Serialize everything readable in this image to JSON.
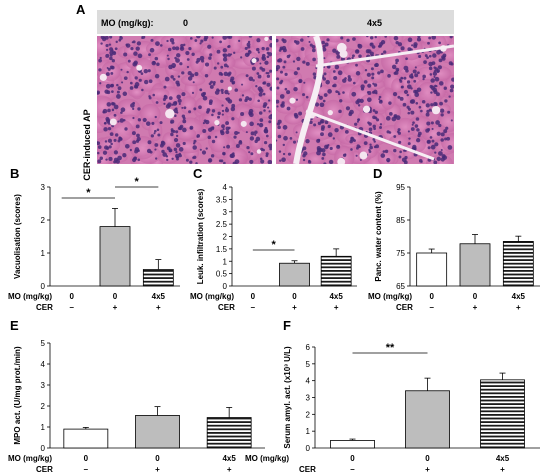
{
  "panel_a": {
    "label": "A",
    "header_label": "MO (mg/kg):",
    "header_groups": [
      "0",
      "4x5"
    ],
    "row_label": "CER-induced AP"
  },
  "row_labels": {
    "mo": "MO (mg/kg)",
    "cer": "CER",
    "groups": [
      "0",
      "0",
      "4x5"
    ],
    "cer_values": [
      "–",
      "+",
      "+"
    ]
  },
  "chart_data": [
    {
      "panel": "B",
      "type": "bar",
      "ylabel": "Vacuolisation (scores)",
      "ylim": [
        0,
        3
      ],
      "yticks": [
        "0",
        "1",
        "2",
        "3"
      ],
      "categories": [
        "0",
        "0",
        "4x5"
      ],
      "values": [
        0,
        1.8,
        0.5
      ],
      "errors": [
        0,
        0.55,
        0.3
      ],
      "significance": [
        {
          "from": 0,
          "to": 1,
          "label": "*"
        },
        {
          "from": 1,
          "to": 2,
          "label": "*"
        }
      ]
    },
    {
      "panel": "C",
      "type": "bar",
      "ylabel": "Leuk. infiltration (scores)",
      "ylim": [
        0,
        4
      ],
      "yticks": [
        "0",
        "0.5",
        "1",
        "1.5",
        "2",
        "2.5",
        "3",
        "3.5",
        "4"
      ],
      "categories": [
        "0",
        "0",
        "4x5"
      ],
      "values": [
        0,
        0.92,
        1.2
      ],
      "errors": [
        0,
        0.1,
        0.3
      ],
      "significance": [
        {
          "from": 0,
          "to": 1,
          "label": "*"
        }
      ]
    },
    {
      "panel": "D",
      "type": "bar",
      "ylabel": "Panc. water content (%)",
      "ylim": [
        65,
        95
      ],
      "yticks": [
        "65",
        "75",
        "85",
        "95"
      ],
      "categories": [
        "0",
        "0",
        "4x5"
      ],
      "values": [
        75,
        77.8,
        78.5
      ],
      "errors": [
        1.2,
        2.8,
        1.6
      ],
      "significance": []
    },
    {
      "panel": "E",
      "type": "bar",
      "ylabel": "MPO act. (U/mg prot./min)",
      "ylim": [
        0,
        5
      ],
      "yticks": [
        "0",
        "1",
        "2",
        "3",
        "4",
        "5"
      ],
      "categories": [
        "0",
        "0",
        "4x5"
      ],
      "values": [
        0.9,
        1.55,
        1.45
      ],
      "errors": [
        0.08,
        0.42,
        0.48
      ],
      "significance": []
    },
    {
      "panel": "F",
      "type": "bar",
      "ylabel": "Serum amyl. act. (x10³ U/L)",
      "ylim": [
        0,
        6
      ],
      "yticks": [
        "0",
        "1",
        "2",
        "3",
        "4",
        "5",
        "6"
      ],
      "categories": [
        "0",
        "0",
        "4x5"
      ],
      "values": [
        0.45,
        3.4,
        4.05
      ],
      "errors": [
        0.08,
        0.75,
        0.4
      ],
      "significance": [
        {
          "from": 0,
          "to": 1,
          "label": "**"
        }
      ]
    }
  ],
  "colors": {
    "bar_fills": [
      "#ffffff",
      "#bdbdbd",
      "stripes"
    ],
    "header_bg": "#dcdcdc",
    "tissue_base": "#d07ab0",
    "tissue_nuclei": "#4a2a78"
  }
}
